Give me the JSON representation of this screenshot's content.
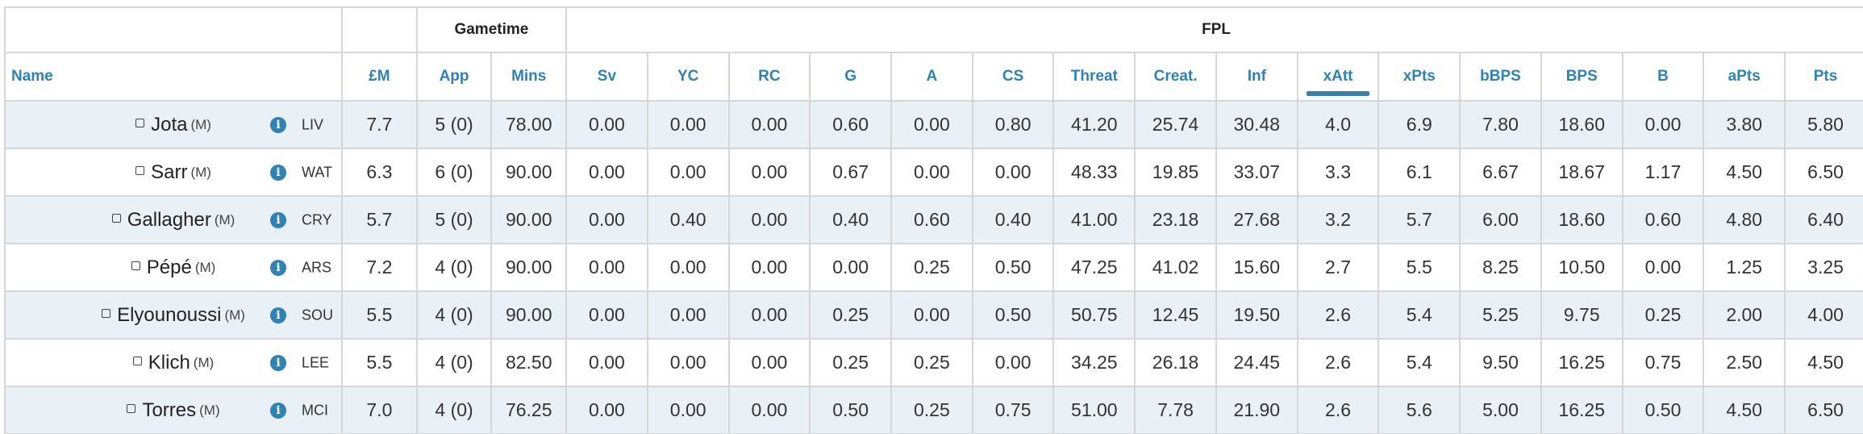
{
  "header": {
    "groups": {
      "gametime": "Gametime",
      "fpl": "FPL"
    },
    "columns": {
      "name": "Name",
      "price": "£M",
      "app": "App",
      "mins": "Mins",
      "sv": "Sv",
      "yc": "YC",
      "rc": "RC",
      "g": "G",
      "a": "A",
      "cs": "CS",
      "threat": "Threat",
      "creat": "Creat.",
      "inf": "Inf",
      "xatt": "xAtt",
      "xpts": "xPts",
      "bbps": "bBPS",
      "bps": "BPS",
      "b": "B",
      "apts": "aPts",
      "pts": "Pts"
    },
    "sorted_column": "xAtt"
  },
  "rows": [
    {
      "name": "Jota",
      "pos": "(M)",
      "team": "LIV",
      "price": "7.7",
      "app": "5 (0)",
      "mins": "78.00",
      "sv": "0.00",
      "yc": "0.00",
      "rc": "0.00",
      "g": "0.60",
      "a": "0.00",
      "cs": "0.80",
      "threat": "41.20",
      "creat": "25.74",
      "inf": "30.48",
      "xatt": "4.0",
      "xpts": "6.9",
      "bbps": "7.80",
      "bps": "18.60",
      "b": "0.00",
      "apts": "3.80",
      "pts": "5.80"
    },
    {
      "name": "Sarr",
      "pos": "(M)",
      "team": "WAT",
      "price": "6.3",
      "app": "6 (0)",
      "mins": "90.00",
      "sv": "0.00",
      "yc": "0.00",
      "rc": "0.00",
      "g": "0.67",
      "a": "0.00",
      "cs": "0.00",
      "threat": "48.33",
      "creat": "19.85",
      "inf": "33.07",
      "xatt": "3.3",
      "xpts": "6.1",
      "bbps": "6.67",
      "bps": "18.67",
      "b": "1.17",
      "apts": "4.50",
      "pts": "6.50"
    },
    {
      "name": "Gallagher",
      "pos": "(M)",
      "team": "CRY",
      "price": "5.7",
      "app": "5 (0)",
      "mins": "90.00",
      "sv": "0.00",
      "yc": "0.40",
      "rc": "0.00",
      "g": "0.40",
      "a": "0.60",
      "cs": "0.40",
      "threat": "41.00",
      "creat": "23.18",
      "inf": "27.68",
      "xatt": "3.2",
      "xpts": "5.7",
      "bbps": "6.00",
      "bps": "18.60",
      "b": "0.60",
      "apts": "4.80",
      "pts": "6.40"
    },
    {
      "name": "Pépé",
      "pos": "(M)",
      "team": "ARS",
      "price": "7.2",
      "app": "4 (0)",
      "mins": "90.00",
      "sv": "0.00",
      "yc": "0.00",
      "rc": "0.00",
      "g": "0.00",
      "a": "0.25",
      "cs": "0.50",
      "threat": "47.25",
      "creat": "41.02",
      "inf": "15.60",
      "xatt": "2.7",
      "xpts": "5.5",
      "bbps": "8.25",
      "bps": "10.50",
      "b": "0.00",
      "apts": "1.25",
      "pts": "3.25"
    },
    {
      "name": "Elyounoussi",
      "pos": "(M)",
      "team": "SOU",
      "price": "5.5",
      "app": "4 (0)",
      "mins": "90.00",
      "sv": "0.00",
      "yc": "0.00",
      "rc": "0.00",
      "g": "0.25",
      "a": "0.00",
      "cs": "0.50",
      "threat": "50.75",
      "creat": "12.45",
      "inf": "19.50",
      "xatt": "2.6",
      "xpts": "5.4",
      "bbps": "5.25",
      "bps": "9.75",
      "b": "0.25",
      "apts": "2.00",
      "pts": "4.00"
    },
    {
      "name": "Klich",
      "pos": "(M)",
      "team": "LEE",
      "price": "5.5",
      "app": "4 (0)",
      "mins": "82.50",
      "sv": "0.00",
      "yc": "0.00",
      "rc": "0.00",
      "g": "0.25",
      "a": "0.25",
      "cs": "0.00",
      "threat": "34.25",
      "creat": "26.18",
      "inf": "24.45",
      "xatt": "2.6",
      "xpts": "5.4",
      "bbps": "9.50",
      "bps": "16.25",
      "b": "0.75",
      "apts": "2.50",
      "pts": "4.50"
    },
    {
      "name": "Torres",
      "pos": "(M)",
      "team": "MCI",
      "price": "7.0",
      "app": "4 (0)",
      "mins": "76.25",
      "sv": "0.00",
      "yc": "0.00",
      "rc": "0.00",
      "g": "0.50",
      "a": "0.25",
      "cs": "0.75",
      "threat": "51.00",
      "creat": "7.78",
      "inf": "21.90",
      "xatt": "2.6",
      "xpts": "5.6",
      "bbps": "5.00",
      "bps": "16.25",
      "b": "0.50",
      "apts": "4.50",
      "pts": "6.50"
    }
  ],
  "icons": {
    "info": "info-icon",
    "select": "checkbox-icon"
  },
  "colors": {
    "header_link": "#2f82b3",
    "row_alt": "#e9f0f6",
    "sort_indicator": "#3a7fa6"
  }
}
